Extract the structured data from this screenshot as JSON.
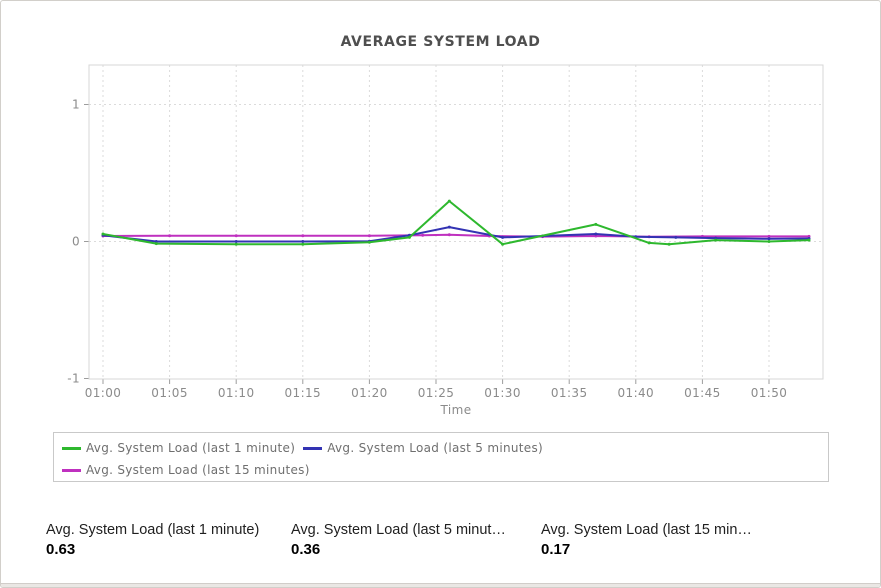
{
  "window": {
    "bg": "#ffffff",
    "border_color": "#d2cfca"
  },
  "chart_data": {
    "type": "line",
    "title": "AVERAGE SYSTEM LOAD",
    "xlabel": "Time",
    "ylabel": "",
    "ylim": [
      -1,
      1
    ],
    "grid": "dotted",
    "legend_position": "bottom-box",
    "x_ticks": [
      "01:00",
      "01:05",
      "01:10",
      "01:15",
      "01:20",
      "01:25",
      "01:30",
      "01:35",
      "01:40",
      "01:45",
      "01:50"
    ],
    "y_ticks": [
      {
        "label": "1",
        "value": 1
      },
      {
        "label": "0",
        "value": 0
      },
      {
        "label": "-1",
        "value": -1
      }
    ],
    "x_unit": "minutes after 01:00",
    "series": [
      {
        "name": "Avg. System Load (last 1 minute)",
        "color": "#2eb82e",
        "points": [
          [
            0,
            0.055
          ],
          [
            4,
            -0.015
          ],
          [
            10,
            -0.02
          ],
          [
            15,
            -0.02
          ],
          [
            20,
            -0.005
          ],
          [
            23,
            0.03
          ],
          [
            26,
            0.295
          ],
          [
            30,
            -0.02
          ],
          [
            37,
            0.125
          ],
          [
            41,
            -0.01
          ],
          [
            42.5,
            -0.02
          ],
          [
            46,
            0.01
          ],
          [
            50,
            0.0
          ],
          [
            53,
            0.01
          ]
        ]
      },
      {
        "name": "Avg. System Load (last 5 minutes)",
        "color": "#3333b3",
        "points": [
          [
            0,
            0.045
          ],
          [
            4,
            0.0
          ],
          [
            10,
            0.0
          ],
          [
            15,
            0.0
          ],
          [
            20,
            0.002
          ],
          [
            23,
            0.045
          ],
          [
            26,
            0.105
          ],
          [
            30,
            0.03
          ],
          [
            33,
            0.04
          ],
          [
            37,
            0.055
          ],
          [
            40,
            0.035
          ],
          [
            43,
            0.03
          ],
          [
            46,
            0.025
          ],
          [
            50,
            0.02
          ],
          [
            53,
            0.022
          ]
        ]
      },
      {
        "name": "Avg. System Load (last 15 minutes)",
        "color": "#bf30bf",
        "points": [
          [
            0,
            0.04
          ],
          [
            5,
            0.042
          ],
          [
            10,
            0.042
          ],
          [
            15,
            0.042
          ],
          [
            20,
            0.042
          ],
          [
            24,
            0.045
          ],
          [
            26,
            0.05
          ],
          [
            29,
            0.04
          ],
          [
            33,
            0.036
          ],
          [
            37,
            0.04
          ],
          [
            41,
            0.035
          ],
          [
            45,
            0.037
          ],
          [
            50,
            0.037
          ],
          [
            53,
            0.037
          ]
        ]
      }
    ]
  },
  "legend": {
    "items": [
      {
        "label": "Avg. System Load (last 1 minute)",
        "color": "#2eb82e"
      },
      {
        "label": "Avg. System Load (last 5 minutes)",
        "color": "#3333b3"
      },
      {
        "label": "Avg. System Load (last 15 minutes)",
        "color": "#bf30bf"
      }
    ]
  },
  "stats": [
    {
      "label": "Avg. System Load (last 1 minute)",
      "value": "0.63"
    },
    {
      "label": "Avg. System Load (last 5 minut…",
      "value": "0.36"
    },
    {
      "label": "Avg. System Load (last 15 min…",
      "value": "0.17"
    }
  ]
}
